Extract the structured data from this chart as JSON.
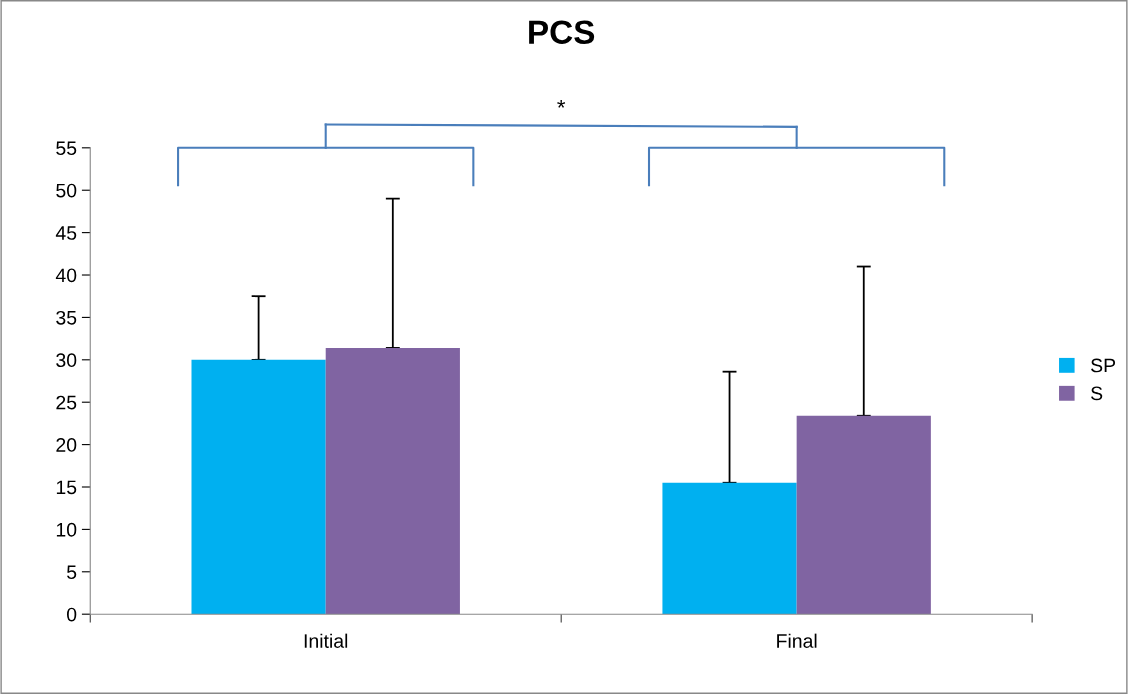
{
  "chart_data": {
    "type": "bar",
    "title": "PCS",
    "categories": [
      "Initial",
      "Final"
    ],
    "series": [
      {
        "name": "SP",
        "color": "#00b0f0",
        "values": [
          30,
          15.5
        ],
        "errors": [
          [
            30,
            37.5
          ],
          [
            15.5,
            28.6
          ]
        ]
      },
      {
        "name": "S",
        "color": "#8064a2",
        "values": [
          31.4,
          23.4
        ],
        "errors": [
          [
            31.4,
            49
          ],
          [
            23.4,
            41
          ]
        ]
      }
    ],
    "ylim": [
      0,
      55
    ],
    "yticks": [
      0,
      5,
      10,
      15,
      20,
      25,
      30,
      35,
      40,
      45,
      50,
      55
    ],
    "annotations": [
      "*"
    ],
    "grid": false,
    "legend": "right"
  }
}
